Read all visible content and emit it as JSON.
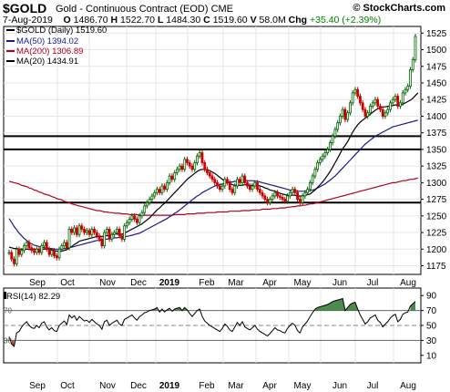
{
  "header": {
    "symbol": "$GOLD",
    "description": "Gold - Continuous Contract (EOD) CME",
    "copyright": "© StockCharts.com",
    "date": "7-Aug-2019",
    "open_label": "O",
    "open": "1486.70",
    "high_label": "H",
    "high": "1522.70",
    "low_label": "L",
    "low": "1484.30",
    "close_label": "C",
    "close": "1519.60",
    "volume_label": "V",
    "volume": "58.0M",
    "change_label": "Chg",
    "change": "+35.40 (+2.39%)"
  },
  "colors": {
    "price": "#000000",
    "up_candle": "#006400",
    "down_candle": "#cc0000",
    "ma50": "#1a1a8c",
    "ma200": "#b00020",
    "ma20": "#000000",
    "rsi_fill": "#3a7d3a",
    "grid": "#e6e6e6"
  },
  "chart_data": [
    {
      "type": "candlestick",
      "legend": [
        {
          "key": "price",
          "label": "$GOLD (Daily) 1519.60"
        },
        {
          "key": "ma50",
          "label": "MA(50) 1394.02"
        },
        {
          "key": "ma200",
          "label": "MA(200) 1306.89"
        },
        {
          "key": "ma20",
          "label": "MA(20) 1434.91"
        }
      ],
      "x_tick_labels": [
        "Sep",
        "Oct",
        "Nov",
        "Dec",
        "2019",
        "Feb",
        "Mar",
        "Apr",
        "May",
        "Jun",
        "Jul",
        "Aug"
      ],
      "y_ticks": [
        1175,
        1200,
        1225,
        1250,
        1275,
        1300,
        1325,
        1350,
        1375,
        1400,
        1425,
        1450,
        1475,
        1500,
        1525
      ],
      "ylim": [
        1162,
        1535
      ],
      "horizontal_lines": [
        1270,
        1350,
        1370
      ],
      "close": [
        1195,
        1185,
        1178,
        1200,
        1192,
        1198,
        1205,
        1210,
        1202,
        1198,
        1195,
        1200,
        1195,
        1205,
        1210,
        1200,
        1192,
        1198,
        1190,
        1187,
        1200,
        1205,
        1210,
        1202,
        1230,
        1225,
        1232,
        1222,
        1235,
        1230,
        1225,
        1228,
        1222,
        1230,
        1225,
        1220,
        1215,
        1205,
        1225,
        1230,
        1215,
        1222,
        1225,
        1230,
        1220,
        1215,
        1235,
        1240,
        1245,
        1250,
        1245,
        1240,
        1250,
        1255,
        1265,
        1270,
        1275,
        1280,
        1285,
        1290,
        1285,
        1295,
        1290,
        1300,
        1310,
        1305,
        1315,
        1320,
        1325,
        1320,
        1335,
        1330,
        1325,
        1320,
        1330,
        1340,
        1345,
        1330,
        1320,
        1315,
        1310,
        1305,
        1300,
        1295,
        1290,
        1295,
        1305,
        1300,
        1290,
        1285,
        1295,
        1305,
        1300,
        1310,
        1300,
        1295,
        1290,
        1295,
        1300,
        1290,
        1285,
        1280,
        1275,
        1270,
        1275,
        1280,
        1285,
        1280,
        1278,
        1275,
        1272,
        1280,
        1285,
        1290,
        1285,
        1275,
        1270,
        1280,
        1285,
        1290,
        1300,
        1310,
        1320,
        1330,
        1335,
        1340,
        1345,
        1350,
        1360,
        1370,
        1380,
        1390,
        1400,
        1410,
        1395,
        1405,
        1420,
        1435,
        1440,
        1430,
        1420,
        1410,
        1400,
        1405,
        1415,
        1420,
        1425,
        1415,
        1410,
        1400,
        1405,
        1410,
        1420,
        1425,
        1430,
        1415,
        1420,
        1435,
        1440,
        1445,
        1470,
        1485,
        1520
      ],
      "ma20": [
        1203,
        1202,
        1201,
        1201,
        1200,
        1200,
        1200,
        1200,
        1200,
        1200,
        1200,
        1200,
        1200,
        1200,
        1200,
        1200,
        1200,
        1199,
        1198,
        1197,
        1197,
        1197,
        1198,
        1199,
        1202,
        1204,
        1207,
        1209,
        1212,
        1213,
        1214,
        1215,
        1216,
        1217,
        1218,
        1219,
        1219,
        1219,
        1220,
        1220,
        1221,
        1222,
        1223,
        1223,
        1223,
        1222,
        1224,
        1226,
        1228,
        1230,
        1232,
        1234,
        1236,
        1238,
        1241,
        1244,
        1247,
        1251,
        1255,
        1259,
        1262,
        1266,
        1269,
        1273,
        1277,
        1281,
        1285,
        1289,
        1293,
        1297,
        1301,
        1305,
        1308,
        1311,
        1314,
        1317,
        1319,
        1320,
        1320,
        1319,
        1318,
        1316,
        1314,
        1311,
        1308,
        1305,
        1303,
        1301,
        1299,
        1297,
        1296,
        1296,
        1296,
        1296,
        1297,
        1297,
        1296,
        1296,
        1296,
        1296,
        1295,
        1294,
        1292,
        1291,
        1289,
        1288,
        1287,
        1286,
        1284,
        1283,
        1282,
        1281,
        1281,
        1281,
        1281,
        1280,
        1280,
        1280,
        1281,
        1282,
        1283,
        1286,
        1289,
        1293,
        1297,
        1301,
        1306,
        1311,
        1317,
        1323,
        1330,
        1337,
        1344,
        1351,
        1356,
        1362,
        1369,
        1376,
        1382,
        1387,
        1391,
        1394,
        1397,
        1400,
        1403,
        1406,
        1409,
        1411,
        1413,
        1414,
        1414,
        1415,
        1415,
        1416,
        1417,
        1416,
        1417,
        1418,
        1420,
        1422,
        1424,
        1427,
        1431,
        1435
      ],
      "ma50": [
        1246,
        1240,
        1234,
        1229,
        1224,
        1220,
        1216,
        1213,
        1210,
        1208,
        1206,
        1205,
        1204,
        1203,
        1202,
        1202,
        1201,
        1201,
        1200,
        1200,
        1200,
        1200,
        1201,
        1201,
        1202,
        1203,
        1204,
        1205,
        1206,
        1207,
        1208,
        1209,
        1210,
        1211,
        1212,
        1213,
        1213,
        1214,
        1215,
        1215,
        1216,
        1216,
        1217,
        1217,
        1218,
        1218,
        1219,
        1219,
        1220,
        1221,
        1222,
        1223,
        1224,
        1226,
        1228,
        1230,
        1232,
        1234,
        1236,
        1238,
        1240,
        1242,
        1244,
        1246,
        1249,
        1251,
        1254,
        1256,
        1259,
        1262,
        1265,
        1268,
        1271,
        1274,
        1277,
        1280,
        1282,
        1285,
        1287,
        1289,
        1291,
        1293,
        1295,
        1296,
        1297,
        1298,
        1299,
        1300,
        1301,
        1301,
        1302,
        1302,
        1302,
        1303,
        1303,
        1303,
        1303,
        1303,
        1302,
        1302,
        1301,
        1300,
        1299,
        1298,
        1297,
        1296,
        1295,
        1294,
        1293,
        1292,
        1291,
        1290,
        1289,
        1288,
        1288,
        1287,
        1287,
        1287,
        1287,
        1287,
        1288,
        1289,
        1290,
        1292,
        1294,
        1296,
        1298,
        1301,
        1304,
        1307,
        1310,
        1314,
        1318,
        1322,
        1326,
        1330,
        1334,
        1338,
        1342,
        1346,
        1350,
        1354,
        1358,
        1361,
        1364,
        1367,
        1370,
        1372,
        1374,
        1376,
        1378,
        1380,
        1382,
        1384,
        1385,
        1386,
        1387,
        1388,
        1389,
        1390,
        1391,
        1392,
        1393,
        1394
      ],
      "ma200": [
        1302,
        1301,
        1300,
        1299,
        1298,
        1296,
        1295,
        1294,
        1292,
        1291,
        1289,
        1288,
        1286,
        1285,
        1283,
        1282,
        1281,
        1279,
        1278,
        1276,
        1275,
        1274,
        1272,
        1271,
        1270,
        1268,
        1267,
        1266,
        1265,
        1264,
        1263,
        1262,
        1261,
        1260,
        1259,
        1258,
        1258,
        1257,
        1256,
        1256,
        1255,
        1255,
        1254,
        1254,
        1254,
        1253,
        1253,
        1253,
        1252,
        1252,
        1252,
        1252,
        1251,
        1251,
        1251,
        1251,
        1251,
        1251,
        1251,
        1251,
        1251,
        1251,
        1251,
        1251,
        1251,
        1251,
        1252,
        1252,
        1252,
        1252,
        1252,
        1253,
        1253,
        1253,
        1253,
        1254,
        1254,
        1254,
        1254,
        1255,
        1255,
        1255,
        1255,
        1256,
        1256,
        1256,
        1256,
        1256,
        1257,
        1257,
        1257,
        1257,
        1257,
        1258,
        1258,
        1258,
        1258,
        1259,
        1259,
        1259,
        1259,
        1260,
        1260,
        1260,
        1260,
        1261,
        1261,
        1261,
        1262,
        1262,
        1262,
        1263,
        1263,
        1264,
        1264,
        1265,
        1265,
        1266,
        1266,
        1267,
        1268,
        1268,
        1269,
        1270,
        1271,
        1272,
        1273,
        1274,
        1275,
        1276,
        1277,
        1278,
        1279,
        1280,
        1281,
        1282,
        1283,
        1284,
        1285,
        1286,
        1287,
        1288,
        1289,
        1290,
        1291,
        1292,
        1293,
        1294,
        1295,
        1296,
        1297,
        1298,
        1299,
        1300,
        1300,
        1301,
        1302,
        1303,
        1303,
        1304,
        1305,
        1305,
        1306,
        1307
      ]
    },
    {
      "type": "line",
      "label": "RSI(14) 82.29",
      "y_ticks": [
        10,
        30,
        50,
        70,
        90
      ],
      "ylim": [
        0,
        100
      ],
      "reference_lines": [
        30,
        50,
        70
      ],
      "x_tick_labels": [
        "Sep",
        "Oct",
        "Nov",
        "Dec",
        "2019",
        "Feb",
        "Mar",
        "Apr",
        "May",
        "Jun",
        "Jul",
        "Aug"
      ],
      "values": [
        35,
        25,
        22,
        40,
        42,
        48,
        52,
        55,
        50,
        47,
        46,
        50,
        47,
        53,
        55,
        48,
        44,
        47,
        43,
        42,
        50,
        53,
        56,
        51,
        64,
        60,
        63,
        57,
        62,
        59,
        56,
        57,
        54,
        58,
        55,
        52,
        50,
        45,
        55,
        57,
        50,
        53,
        55,
        57,
        52,
        50,
        58,
        60,
        62,
        64,
        60,
        57,
        62,
        64,
        67,
        68,
        70,
        71,
        72,
        74,
        68,
        72,
        68,
        71,
        73,
        69,
        72,
        73,
        74,
        70,
        74,
        71,
        66,
        62,
        66,
        70,
        72,
        62,
        56,
        53,
        50,
        48,
        46,
        44,
        42,
        46,
        52,
        49,
        44,
        42,
        48,
        54,
        50,
        55,
        48,
        46,
        44,
        47,
        50,
        45,
        42,
        40,
        38,
        36,
        39,
        43,
        47,
        44,
        43,
        41,
        40,
        46,
        50,
        53,
        50,
        43,
        40,
        48,
        52,
        56,
        62,
        67,
        72,
        74,
        75,
        76,
        77,
        78,
        80,
        82,
        83,
        84,
        85,
        86,
        70,
        74,
        78,
        80,
        81,
        72,
        64,
        58,
        52,
        55,
        60,
        62,
        64,
        57,
        54,
        48,
        52,
        55,
        60,
        63,
        65,
        55,
        58,
        65,
        67,
        68,
        76,
        79,
        82
      ],
      "markers": [
        "70",
        "30"
      ]
    }
  ]
}
